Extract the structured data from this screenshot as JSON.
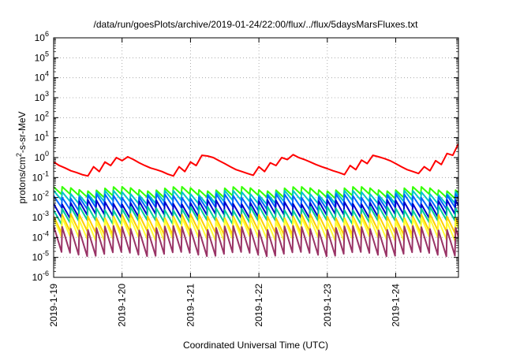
{
  "chart_data": {
    "type": "line",
    "title": "/data/run/goesPlots/archive/2019-01-24/22:00/flux/../flux/5daysMarsFluxes.txt",
    "xlabel": "Coordinated Universal Time (UTC)",
    "ylabel": {
      "base": "protons/cm",
      "sup": "2",
      "rest": "-s-sr-MeV"
    },
    "yscale": "log",
    "ylim": [
      1e-06,
      1000000.0
    ],
    "xlim": [
      "2019-01-19T00:00",
      "2019-01-24T22:00"
    ],
    "grid": true,
    "legend": "none",
    "x_ticks": [
      {
        "label": "2019-1-19",
        "value": "2019-01-19"
      },
      {
        "label": "2019-1-20",
        "value": "2019-01-20"
      },
      {
        "label": "2019-1-21",
        "value": "2019-01-21"
      },
      {
        "label": "2019-1-22",
        "value": "2019-01-22"
      },
      {
        "label": "2019-1-23",
        "value": "2019-01-23"
      },
      {
        "label": "2019-1-24",
        "value": "2019-01-24"
      }
    ],
    "y_ticks": [
      {
        "base": "10",
        "exp": "-6"
      },
      {
        "base": "10",
        "exp": "-5"
      },
      {
        "base": "10",
        "exp": "-4"
      },
      {
        "base": "10",
        "exp": "-3"
      },
      {
        "base": "10",
        "exp": "-2"
      },
      {
        "base": "10",
        "exp": "-1"
      },
      {
        "base": "10",
        "exp": "0"
      },
      {
        "base": "10",
        "exp": "1"
      },
      {
        "base": "10",
        "exp": "2"
      },
      {
        "base": "10",
        "exp": "3"
      },
      {
        "base": "10",
        "exp": "4"
      },
      {
        "base": "10",
        "exp": "5"
      },
      {
        "base": "10",
        "exp": "6"
      }
    ],
    "series": [
      {
        "color": "#ff0000",
        "x": [
          "2019-01-19T00:00",
          "2019-01-19T02:00",
          "2019-01-19T04:00",
          "2019-01-19T06:00",
          "2019-01-19T08:00",
          "2019-01-19T10:00",
          "2019-01-19T12:00",
          "2019-01-19T14:00",
          "2019-01-19T16:00",
          "2019-01-19T18:00",
          "2019-01-19T20:00",
          "2019-01-19T22:00",
          "2019-01-20T00:00",
          "2019-01-20T02:00",
          "2019-01-20T04:00",
          "2019-01-20T06:00",
          "2019-01-20T08:00",
          "2019-01-20T10:00",
          "2019-01-20T12:00",
          "2019-01-20T14:00",
          "2019-01-20T16:00",
          "2019-01-20T18:00",
          "2019-01-20T20:00",
          "2019-01-20T22:00",
          "2019-01-21T00:00",
          "2019-01-21T02:00",
          "2019-01-21T04:00",
          "2019-01-21T06:00",
          "2019-01-21T08:00",
          "2019-01-21T10:00",
          "2019-01-21T12:00",
          "2019-01-21T14:00",
          "2019-01-21T16:00",
          "2019-01-21T18:00",
          "2019-01-21T20:00",
          "2019-01-21T22:00",
          "2019-01-22T00:00",
          "2019-01-22T02:00",
          "2019-01-22T04:00",
          "2019-01-22T06:00",
          "2019-01-22T08:00",
          "2019-01-22T10:00",
          "2019-01-22T12:00",
          "2019-01-22T14:00",
          "2019-01-22T16:00",
          "2019-01-22T18:00",
          "2019-01-22T20:00",
          "2019-01-22T22:00",
          "2019-01-23T00:00",
          "2019-01-23T02:00",
          "2019-01-23T04:00",
          "2019-01-23T06:00",
          "2019-01-23T08:00",
          "2019-01-23T10:00",
          "2019-01-23T12:00",
          "2019-01-23T14:00",
          "2019-01-23T16:00",
          "2019-01-23T18:00",
          "2019-01-23T20:00",
          "2019-01-23T22:00",
          "2019-01-24T00:00",
          "2019-01-24T02:00",
          "2019-01-24T04:00",
          "2019-01-24T06:00",
          "2019-01-24T08:00",
          "2019-01-24T10:00",
          "2019-01-24T12:00",
          "2019-01-24T14:00",
          "2019-01-24T16:00",
          "2019-01-24T18:00",
          "2019-01-24T20:00",
          "2019-01-24T22:00"
        ],
        "y": [
          0.6,
          0.4,
          0.3,
          0.22,
          0.18,
          0.14,
          0.12,
          0.35,
          0.2,
          0.6,
          0.4,
          1.0,
          0.7,
          1.1,
          0.8,
          0.55,
          0.4,
          0.3,
          0.25,
          0.2,
          0.15,
          0.12,
          0.35,
          0.2,
          0.6,
          0.4,
          1.3,
          1.2,
          1.0,
          0.7,
          0.5,
          0.35,
          0.25,
          0.2,
          0.16,
          0.13,
          0.35,
          0.2,
          0.55,
          0.4,
          1.0,
          0.8,
          1.4,
          1.0,
          0.8,
          0.6,
          0.45,
          0.35,
          0.28,
          0.22,
          0.18,
          0.14,
          0.4,
          0.25,
          0.75,
          0.5,
          1.3,
          1.1,
          0.9,
          0.7,
          0.5,
          0.35,
          0.25,
          0.2,
          0.16,
          0.35,
          0.22,
          0.7,
          0.45,
          1.6,
          1.3,
          5.0
        ]
      },
      {
        "color": "#33ff00",
        "sawtooth": true,
        "peak": 0.028,
        "trough": 0.012
      },
      {
        "color": "#00c8c8",
        "sawtooth": true,
        "peak": 0.018,
        "trough": 0.006
      },
      {
        "color": "#0066ff",
        "sawtooth": true,
        "peak": 0.012,
        "trough": 0.003
      },
      {
        "color": "#0000cc",
        "sawtooth": true,
        "peak": 0.006,
        "trough": 0.0012
      },
      {
        "color": "#00cc99",
        "sawtooth": true,
        "peak": 0.003,
        "trough": 0.0006
      },
      {
        "color": "#ffcc00",
        "sawtooth": true,
        "peak": 0.0012,
        "trough": 0.00018
      },
      {
        "color": "#ffff33",
        "sawtooth": true,
        "peak": 0.0008,
        "trough": 9e-05
      },
      {
        "color": "#993366",
        "sawtooth": true,
        "peak": 0.0003,
        "trough": 1.5e-05
      }
    ]
  }
}
